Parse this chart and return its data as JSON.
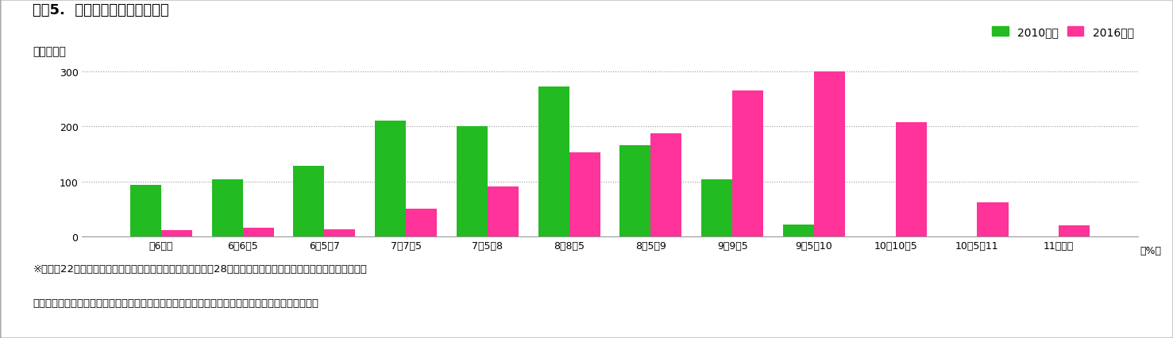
{
  "title": "図表5.  保険料率ごとの組合分布",
  "ylabel": "（組合数）",
  "xlabel_unit": "（%）",
  "categories": [
    "～6未満",
    "6～6．5",
    "6．5～7",
    "7～7．5",
    "7．5～8",
    "8～8．5",
    "8．5～9",
    "9～9．5",
    "9．5～10",
    "10～10．5",
    "10．5～11",
    "11以上～"
  ],
  "values_2010": [
    93,
    104,
    128,
    210,
    200,
    272,
    165,
    103,
    22,
    0,
    0,
    0
  ],
  "values_2016": [
    12,
    15,
    13,
    50,
    90,
    153,
    187,
    265,
    300,
    208,
    62,
    20
  ],
  "color_2010": "#22bb22",
  "color_2016": "#ff3399",
  "legend_2010": "2010年度",
  "legend_2016": "2016年度",
  "ylim": [
    0,
    320
  ],
  "yticks": [
    0,
    100,
    200,
    300
  ],
  "footnote_line1": "※「平成22年度健保組合予算早期集計結果の概要」、「平成28年度健保組合予算早期集計結果の概要」（いずれ",
  "footnote_line2": "　も健康保険組合連合会）における、予算データ報告があった組合ベースの数値をもとに、筆者作成",
  "background_color": "#ffffff",
  "grid_color": "#999999",
  "bar_width": 0.38,
  "title_fontsize": 13,
  "ylabel_fontsize": 10,
  "legend_fontsize": 10,
  "tick_fontsize": 9,
  "footnote_fontsize": 9.5
}
